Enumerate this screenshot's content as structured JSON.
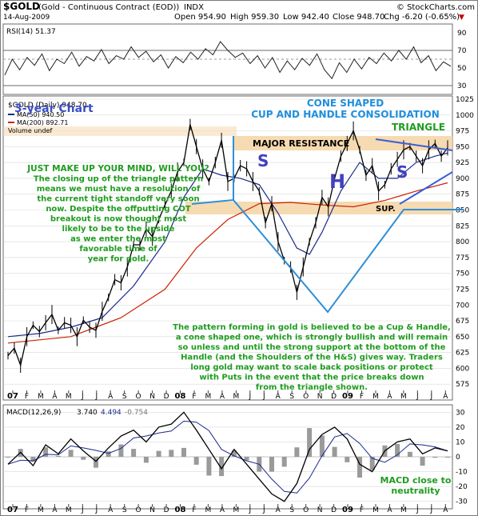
{
  "header": {
    "symbol": "$GOLD",
    "description": "(Gold - Continuous Contract (EOD))",
    "exchange": "INDX",
    "credit": "© StockCharts.com",
    "date": "14-Aug-2009",
    "open": "Open 954.90",
    "high": "High 959.30",
    "low": "Low 942.40",
    "close": "Close 948.70",
    "change": "Chg -6.20 (-0.65%)",
    "change_arrow": "▼"
  },
  "colors": {
    "price": "#000000",
    "ma50": "#1a2a8a",
    "ma200": "#cc2200",
    "pattern_lines": "#2f8fd8",
    "panel_bg": "#ffffff",
    "annotation_green": "#1f9c1f",
    "annotation_blue": "#1f8fdc",
    "resistance_band": "#f5d6a8",
    "shoulder_letter": "#4040c0",
    "grid": "#d9d9d9"
  },
  "annotations": {
    "three_year": "3-year Chart",
    "cone_line1": "CONE SHAPED",
    "cone_line2": "CUP AND HANDLE CONSOLIDATION",
    "triangle": "TRIANGLE",
    "major_resistance": "MAJOR RESISTANCE",
    "sup": "SUP.",
    "s_left": "S",
    "h_mid": "H",
    "s_right": "S",
    "left_text": [
      "JUST MAKE UP YOUR MIND, WILL YOU?",
      "The closing up of the triangle pattern",
      "means we must have a resolution of",
      "the current tight standoff very soon",
      "now. Despite the offputting COT",
      "breakout is now thought most",
      "likely to be to the upside",
      "as we enter the most",
      "favorable time of",
      "year for gold."
    ],
    "bottom_text": [
      "The pattern forming in gold is believed to be a Cup & Handle,",
      "a cone shaped one, which is strongly bullish and will remain",
      "so unless and until the strong support at the bottom of the",
      "Handle (and the Shoulders of the H&S) gives way. Traders",
      "long gold may want to scale back positions or protect",
      "with Puts in the event that the price breaks down",
      "from the triangle shown."
    ],
    "macd_note_1": "MACD close to",
    "macd_note_2": "neutrality"
  },
  "chart_data": [
    {
      "type": "line",
      "panel": "rsi",
      "title": "RSI(14) 51.37",
      "ylim": [
        20,
        100
      ],
      "y_ticks": [
        90,
        70,
        50,
        30
      ],
      "reference_lines": [
        70,
        30
      ],
      "points": [
        [
          0,
          42
        ],
        [
          3,
          60
        ],
        [
          6,
          48
        ],
        [
          9,
          62
        ],
        [
          12,
          53
        ],
        [
          15,
          66
        ],
        [
          18,
          47
        ],
        [
          21,
          60
        ],
        [
          24,
          55
        ],
        [
          27,
          68
        ],
        [
          30,
          52
        ],
        [
          33,
          63
        ],
        [
          36,
          58
        ],
        [
          39,
          71
        ],
        [
          42,
          55
        ],
        [
          45,
          64
        ],
        [
          48,
          60
        ],
        [
          51,
          74
        ],
        [
          54,
          62
        ],
        [
          57,
          69
        ],
        [
          60,
          57
        ],
        [
          63,
          65
        ],
        [
          66,
          50
        ],
        [
          69,
          63
        ],
        [
          72,
          56
        ],
        [
          75,
          68
        ],
        [
          78,
          60
        ],
        [
          81,
          72
        ],
        [
          84,
          65
        ],
        [
          87,
          80
        ],
        [
          90,
          70
        ],
        [
          93,
          62
        ],
        [
          96,
          67
        ],
        [
          99,
          55
        ],
        [
          102,
          64
        ],
        [
          105,
          50
        ],
        [
          108,
          62
        ],
        [
          111,
          45
        ],
        [
          114,
          58
        ],
        [
          117,
          48
        ],
        [
          120,
          61
        ],
        [
          123,
          53
        ],
        [
          126,
          66
        ],
        [
          129,
          48
        ],
        [
          132,
          38
        ],
        [
          135,
          56
        ],
        [
          138,
          45
        ],
        [
          141,
          60
        ],
        [
          144,
          49
        ],
        [
          147,
          62
        ],
        [
          150,
          55
        ],
        [
          153,
          67
        ],
        [
          156,
          58
        ],
        [
          159,
          70
        ],
        [
          162,
          60
        ],
        [
          165,
          74
        ],
        [
          168,
          56
        ],
        [
          171,
          64
        ],
        [
          174,
          47
        ],
        [
          177,
          57
        ],
        [
          180,
          52
        ]
      ]
    },
    {
      "type": "line",
      "panel": "price",
      "title": "$GOLD (Daily) 948.70",
      "x_tick_labels": [
        "07",
        "F",
        "M",
        "A",
        "M",
        "J",
        "J",
        "A",
        "S",
        "O",
        "N",
        "D",
        "08",
        "F",
        "M",
        "A",
        "M",
        "J",
        "J",
        "A",
        "S",
        "O",
        "N",
        "D",
        "09",
        "F",
        "M",
        "A",
        "M",
        "J",
        "J",
        "A"
      ],
      "ylim": [
        550,
        1030
      ],
      "y_ticks": [
        1025,
        1000,
        975,
        950,
        925,
        900,
        875,
        850,
        825,
        800,
        775,
        750,
        725,
        700,
        675,
        650,
        625,
        600,
        575
      ],
      "series": [
        {
          "name": "$GOLD (Daily) 948.70",
          "values": [
            [
              0,
              620
            ],
            [
              1,
              632
            ],
            [
              2,
              605
            ],
            [
              3,
              650
            ],
            [
              4,
              668
            ],
            [
              5,
              658
            ],
            [
              6,
              672
            ],
            [
              7,
              685
            ],
            [
              8,
              660
            ],
            [
              9,
              672
            ],
            [
              10,
              668
            ],
            [
              11,
              650
            ],
            [
              12,
              676
            ],
            [
              13,
              665
            ],
            [
              14,
              660
            ],
            [
              15,
              690
            ],
            [
              16,
              712
            ],
            [
              17,
              740
            ],
            [
              18,
              735
            ],
            [
              19,
              760
            ],
            [
              20,
              795
            ],
            [
              21,
              795
            ],
            [
              22,
              820
            ],
            [
              23,
              808
            ],
            [
              24,
              835
            ],
            [
              25,
              858
            ],
            [
              26,
              880
            ],
            [
              27,
              910
            ],
            [
              28,
              925
            ],
            [
              29,
              985
            ],
            [
              30,
              950
            ],
            [
              31,
              915
            ],
            [
              32,
              895
            ],
            [
              33,
              925
            ],
            [
              34,
              960
            ],
            [
              35,
              895
            ],
            [
              36,
              900
            ],
            [
              37,
              920
            ],
            [
              38,
              915
            ],
            [
              39,
              895
            ],
            [
              40,
              880
            ],
            [
              41,
              830
            ],
            [
              42,
              860
            ],
            [
              43,
              800
            ],
            [
              44,
              770
            ],
            [
              45,
              760
            ],
            [
              46,
              720
            ],
            [
              47,
              760
            ],
            [
              48,
              800
            ],
            [
              49,
              830
            ],
            [
              50,
              870
            ],
            [
              51,
              855
            ],
            [
              52,
              900
            ],
            [
              53,
              935
            ],
            [
              54,
              955
            ],
            [
              55,
              975
            ],
            [
              56,
              945
            ],
            [
              57,
              905
            ],
            [
              58,
              920
            ],
            [
              59,
              880
            ],
            [
              60,
              890
            ],
            [
              61,
              915
            ],
            [
              62,
              930
            ],
            [
              63,
              945
            ],
            [
              64,
              950
            ],
            [
              65,
              935
            ],
            [
              66,
              920
            ],
            [
              67,
              945
            ],
            [
              68,
              955
            ],
            [
              69,
              935
            ],
            [
              70,
              948
            ]
          ]
        },
        {
          "name": "MA(50) 940.50",
          "values": [
            [
              0,
              650
            ],
            [
              5,
              655
            ],
            [
              10,
              665
            ],
            [
              15,
              680
            ],
            [
              20,
              730
            ],
            [
              25,
              800
            ],
            [
              28,
              870
            ],
            [
              31,
              915
            ],
            [
              34,
              905
            ],
            [
              37,
              900
            ],
            [
              40,
              890
            ],
            [
              43,
              845
            ],
            [
              46,
              790
            ],
            [
              48,
              780
            ],
            [
              50,
              815
            ],
            [
              53,
              880
            ],
            [
              56,
              925
            ],
            [
              59,
              900
            ],
            [
              62,
              900
            ],
            [
              65,
              925
            ],
            [
              68,
              935
            ],
            [
              70,
              940
            ]
          ]
        },
        {
          "name": "MA(200) 892.71",
          "values": [
            [
              0,
              640
            ],
            [
              10,
              650
            ],
            [
              18,
              680
            ],
            [
              25,
              725
            ],
            [
              30,
              790
            ],
            [
              35,
              835
            ],
            [
              40,
              860
            ],
            [
              45,
              862
            ],
            [
              50,
              858
            ],
            [
              55,
              855
            ],
            [
              60,
              865
            ],
            [
              65,
              880
            ],
            [
              70,
              893
            ]
          ]
        }
      ],
      "pattern_levels": {
        "major_resistance": 1000,
        "support": 860,
        "cone_low": 675
      }
    },
    {
      "type": "line",
      "panel": "macd",
      "title": "MACD(12,26,9)",
      "legend": [
        "3.740",
        "4.494",
        "-0.754"
      ],
      "ylim": [
        -35,
        35
      ],
      "y_ticks": [
        30,
        20,
        10,
        0,
        -10,
        -20,
        -30
      ],
      "series": [
        {
          "name": "3.740",
          "values": [
            [
              0,
              -5
            ],
            [
              2,
              3
            ],
            [
              4,
              -6
            ],
            [
              6,
              8
            ],
            [
              8,
              2
            ],
            [
              10,
              12
            ],
            [
              12,
              4
            ],
            [
              14,
              -3
            ],
            [
              16,
              6
            ],
            [
              18,
              14
            ],
            [
              20,
              18
            ],
            [
              22,
              10
            ],
            [
              24,
              20
            ],
            [
              26,
              22
            ],
            [
              28,
              30
            ],
            [
              30,
              18
            ],
            [
              32,
              5
            ],
            [
              34,
              -8
            ],
            [
              36,
              5
            ],
            [
              38,
              -5
            ],
            [
              40,
              -15
            ],
            [
              42,
              -25
            ],
            [
              44,
              -30
            ],
            [
              46,
              -18
            ],
            [
              48,
              5
            ],
            [
              50,
              15
            ],
            [
              52,
              20
            ],
            [
              54,
              12
            ],
            [
              56,
              -5
            ],
            [
              58,
              -10
            ],
            [
              60,
              4
            ],
            [
              62,
              10
            ],
            [
              64,
              12
            ],
            [
              66,
              2
            ],
            [
              68,
              6
            ],
            [
              70,
              4
            ]
          ]
        }
      ]
    }
  ]
}
